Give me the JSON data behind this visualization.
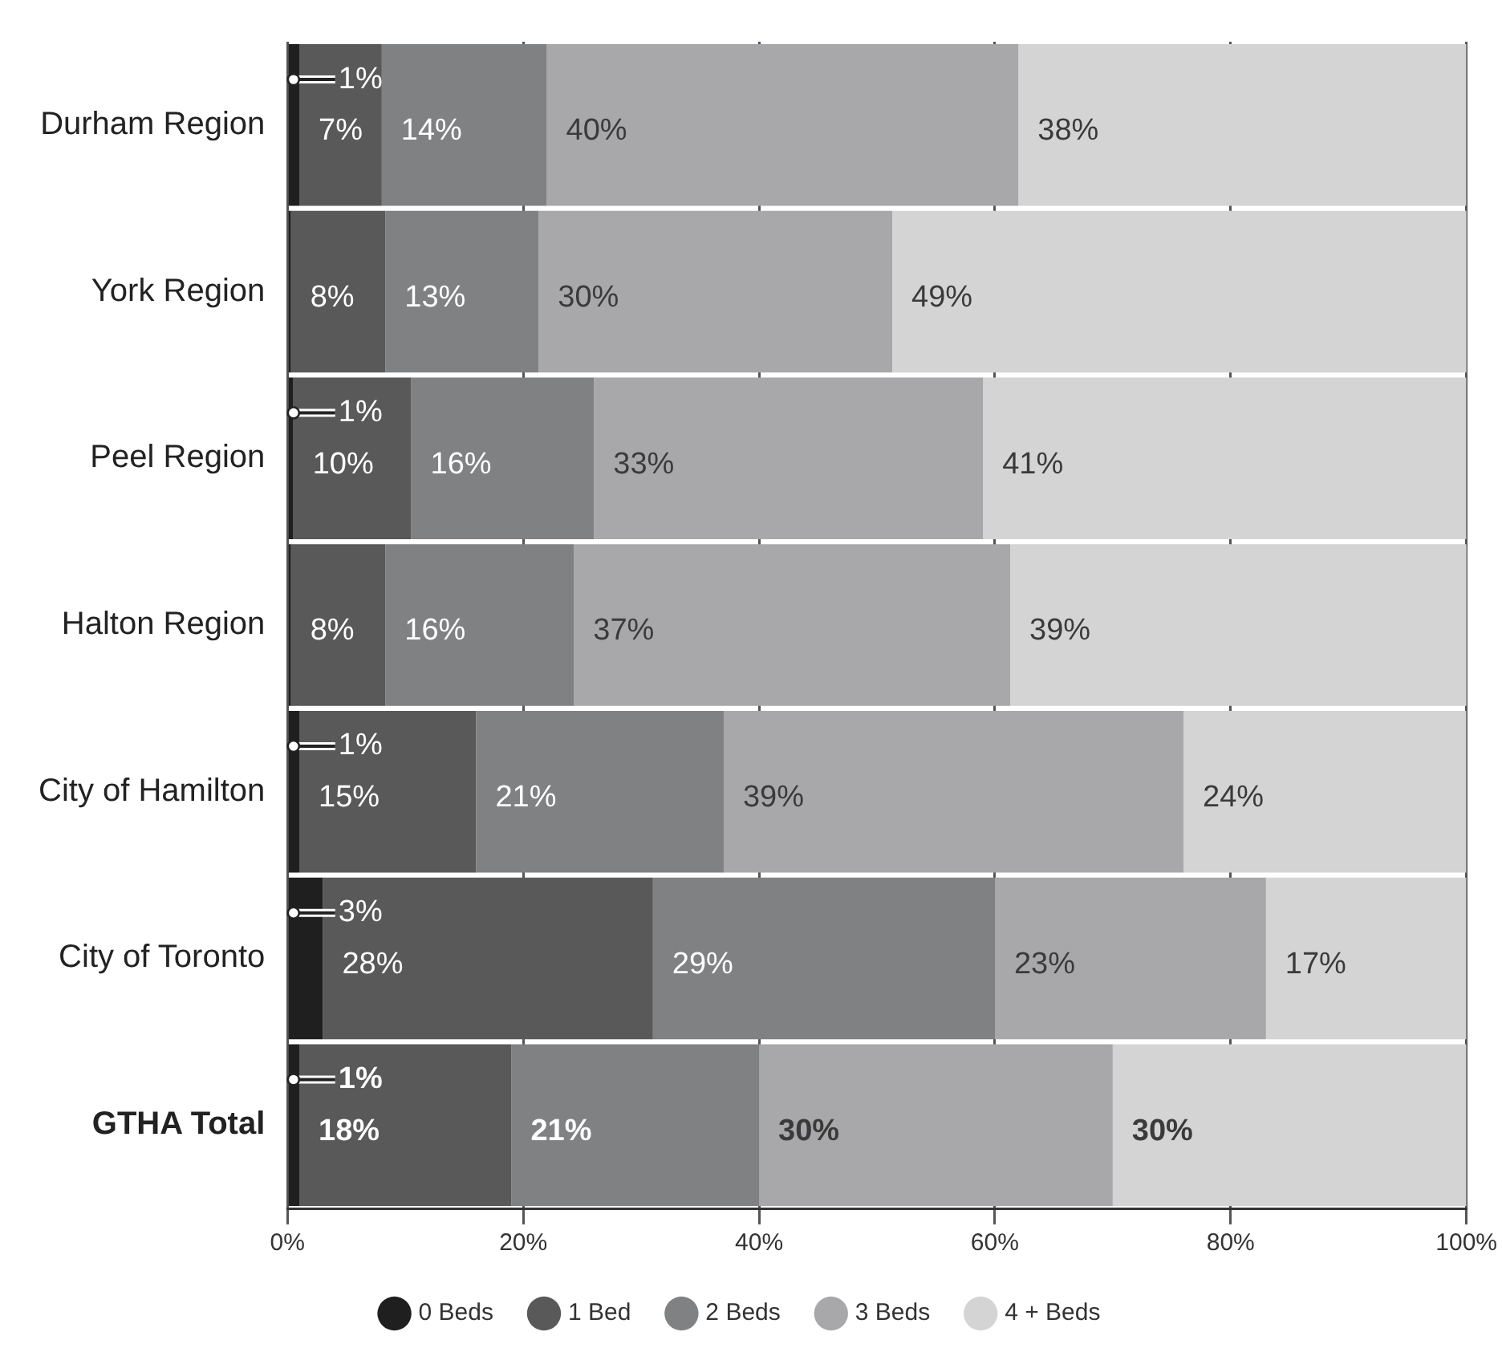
{
  "chart_data": {
    "type": "bar",
    "orientation": "horizontal",
    "stacked": true,
    "categories": [
      "Durham Region",
      "York Region",
      "Peel Region",
      "Halton Region",
      "City of Hamilton",
      "City of Toronto",
      "GTHA Total"
    ],
    "series": [
      {
        "name": "0 Beds",
        "color": "#1e1f1e",
        "values": [
          1,
          0.3,
          0.5,
          0.3,
          1,
          3,
          1
        ],
        "value_labels": [
          "1%",
          null,
          "1%",
          null,
          "1%",
          "3%",
          "1%"
        ]
      },
      {
        "name": "1 Bed",
        "color": "#595959",
        "values": [
          7,
          8,
          10,
          8,
          15,
          28,
          18
        ],
        "value_labels": [
          "7%",
          "8%",
          "10%",
          "8%",
          "15%",
          "28%",
          "18%"
        ]
      },
      {
        "name": "2 Beds",
        "color": "#7f8183",
        "values": [
          14,
          13,
          15.5,
          16,
          21,
          29,
          21
        ],
        "value_labels": [
          "14%",
          "13%",
          "16%",
          "16%",
          "21%",
          "29%",
          "21%"
        ]
      },
      {
        "name": "3 Beds",
        "color": "#a8a8aa",
        "values": [
          40,
          30,
          33,
          37,
          39,
          23,
          30
        ],
        "value_labels": [
          "40%",
          "30%",
          "33%",
          "37%",
          "39%",
          "23%",
          "30%"
        ]
      },
      {
        "name": "4 + Beds",
        "color": "#d4d4d4",
        "values": [
          38,
          49,
          41,
          39,
          24,
          17,
          30
        ],
        "value_labels": [
          "38%",
          "49%",
          "41%",
          "39%",
          "24%",
          "17%",
          "30%"
        ]
      }
    ],
    "xlim": [
      0,
      100
    ],
    "xticks": [
      {
        "value": 0,
        "label": "0%"
      },
      {
        "value": 20,
        "label": "20%"
      },
      {
        "value": 40,
        "label": "40%"
      },
      {
        "value": 60,
        "label": "60%"
      },
      {
        "value": 80,
        "label": "80%"
      },
      {
        "value": 100,
        "label": "100%"
      }
    ],
    "grid": "x",
    "legend": "bottom"
  }
}
